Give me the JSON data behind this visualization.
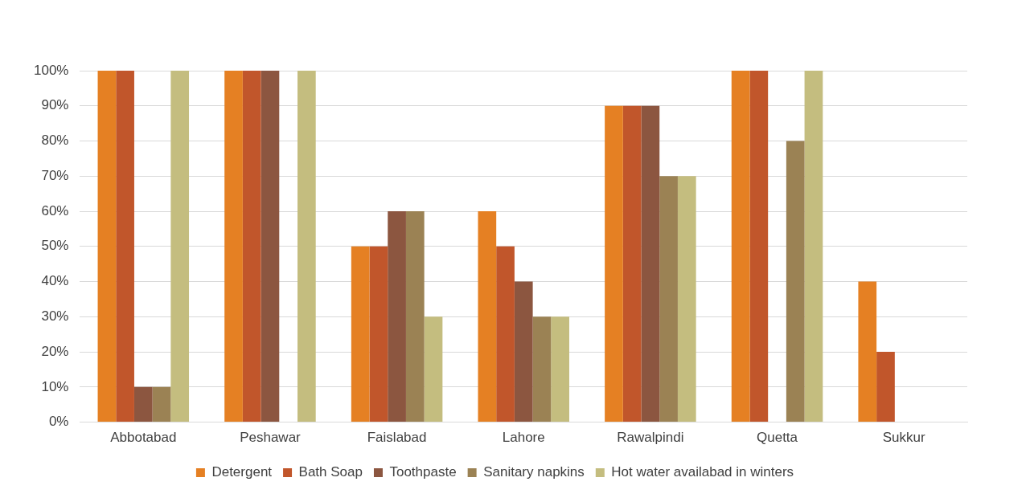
{
  "chart_data": {
    "type": "bar",
    "categories": [
      "Abbotabad",
      "Peshawar",
      "Faislabad",
      "Lahore",
      "Rawalpindi",
      "Quetta",
      "Sukkur"
    ],
    "series": [
      {
        "name": "Detergent",
        "color": "#e58023",
        "values": [
          100,
          100,
          50,
          60,
          90,
          100,
          40
        ]
      },
      {
        "name": "Bath Soap",
        "color": "#c1562b",
        "values": [
          100,
          100,
          50,
          50,
          90,
          100,
          20
        ]
      },
      {
        "name": "Toothpaste",
        "color": "#8c5640",
        "values": [
          10,
          100,
          60,
          40,
          90,
          0,
          0
        ]
      },
      {
        "name": "Sanitary napkins",
        "color": "#9b8254",
        "values": [
          10,
          0,
          60,
          30,
          70,
          80,
          0
        ]
      },
      {
        "name": "Hot water availabad in winters",
        "color": "#c4bd7f",
        "values": [
          100,
          100,
          30,
          30,
          70,
          100,
          0
        ]
      }
    ],
    "ylim": [
      0,
      100
    ],
    "yticks": [
      {
        "value": 0,
        "label": "0%"
      },
      {
        "value": 10,
        "label": "10%"
      },
      {
        "value": 20,
        "label": "20%"
      },
      {
        "value": 30,
        "label": "30%"
      },
      {
        "value": 40,
        "label": "40%"
      },
      {
        "value": 50,
        "label": "50%"
      },
      {
        "value": 60,
        "label": "60%"
      },
      {
        "value": 70,
        "label": "70%"
      },
      {
        "value": 80,
        "label": "80%"
      },
      {
        "value": 90,
        "label": "90%"
      },
      {
        "value": 100,
        "label": "100%"
      }
    ],
    "grid": "y",
    "legend": "bottom"
  }
}
